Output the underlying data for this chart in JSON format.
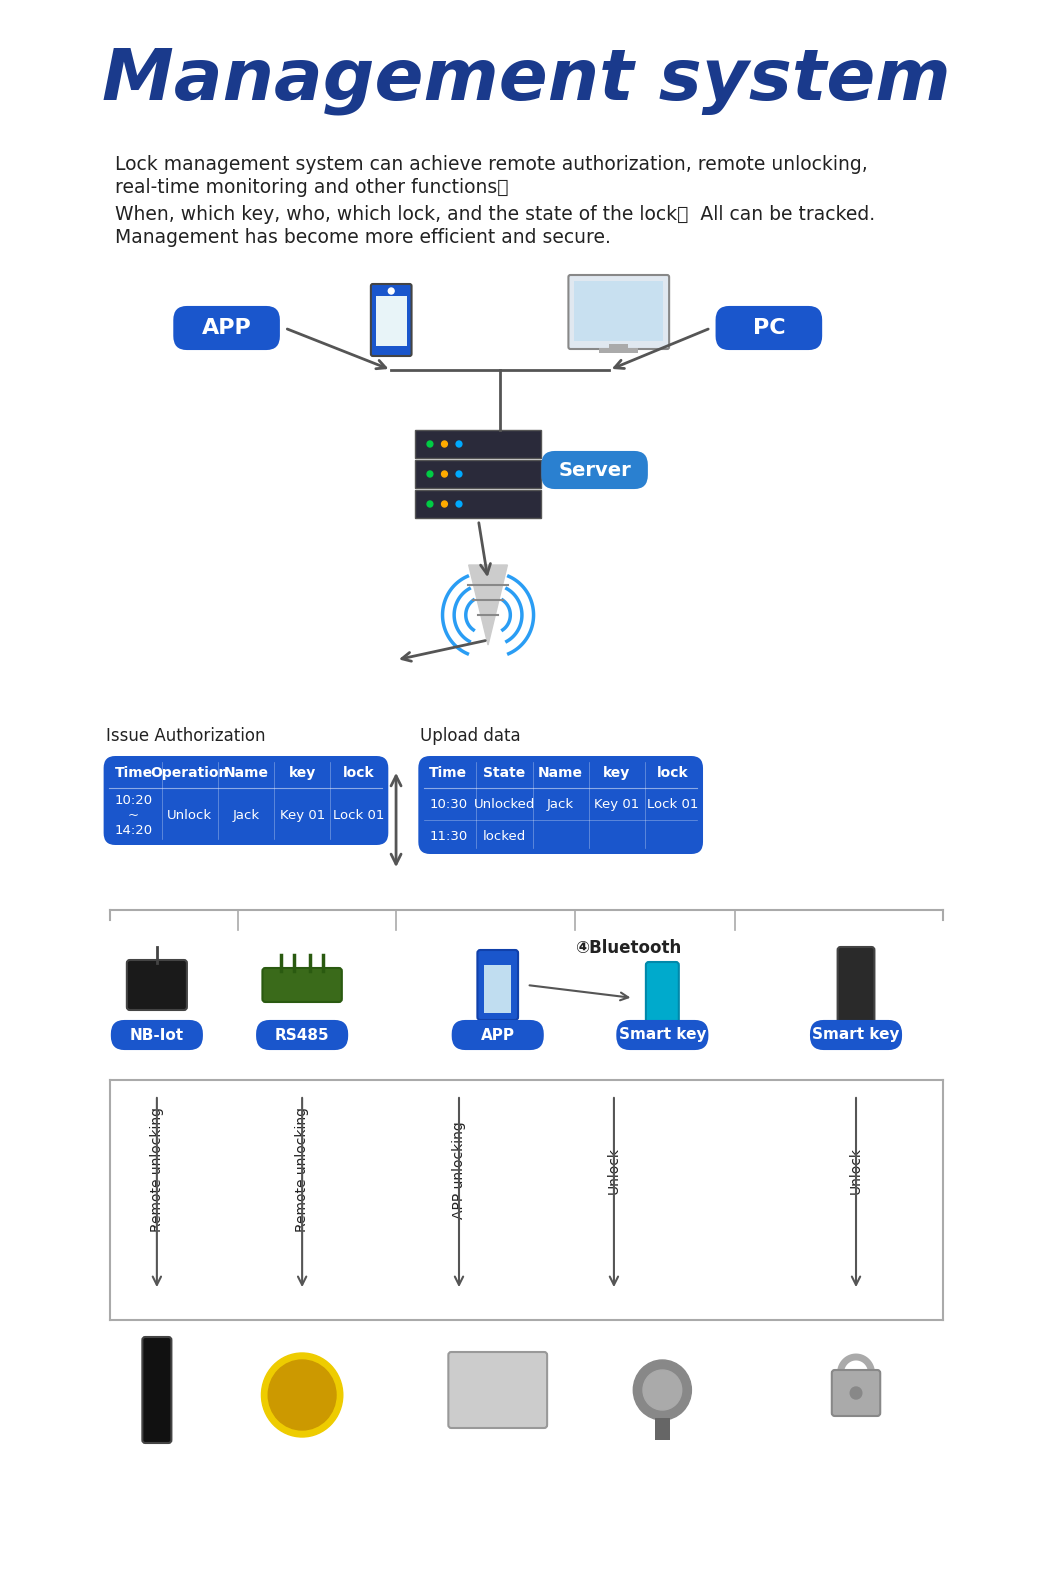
{
  "title": "Management system",
  "title_color": "#1a3a8c",
  "bg_color": "#ffffff",
  "desc_lines": [
    "Lock management system can achieve remote authorization, remote unlocking,",
    "real-time monitoring and other functions。",
    "When, which key, who, which lock, and the state of the lock，  All can be tracked.",
    "Management has become more efficient and secure."
  ],
  "label_app": "APP",
  "label_pc": "PC",
  "label_server": "Server",
  "label_bluetooth": "④Bluetooth",
  "issue_auth_title": "Issue Authorization",
  "upload_data_title": "Upload data",
  "issue_auth_headers": [
    "Time",
    "Operation",
    "Name",
    "key",
    "lock"
  ],
  "issue_auth_row": [
    "10:20\n~\n14:20",
    "Unlock",
    "Jack",
    "Key 01",
    "Lock 01"
  ],
  "upload_data_headers": [
    "Time",
    "State",
    "Name",
    "key",
    "lock"
  ],
  "upload_data_rows": [
    [
      "10:30",
      "Unlocked",
      "Jack",
      "Key 01",
      "Lock 01"
    ],
    [
      "11:30",
      "locked",
      "",
      "",
      ""
    ]
  ],
  "bottom_labels": [
    "NB-Iot",
    "RS485",
    "APP",
    "Smart key",
    "Smart key"
  ],
  "bottom_arrow_labels": [
    "Remote unlocking",
    "Remote unlocking",
    "APP unlocking",
    "Unlock",
    "Unlock"
  ],
  "blue_color": "#1a56cc",
  "table_blue": "#1a56cc",
  "table_header_blue": "#1a56cc",
  "text_white": "#ffffff",
  "text_dark": "#222222",
  "arrow_color": "#555555",
  "divider_color": "#aaaaaa"
}
